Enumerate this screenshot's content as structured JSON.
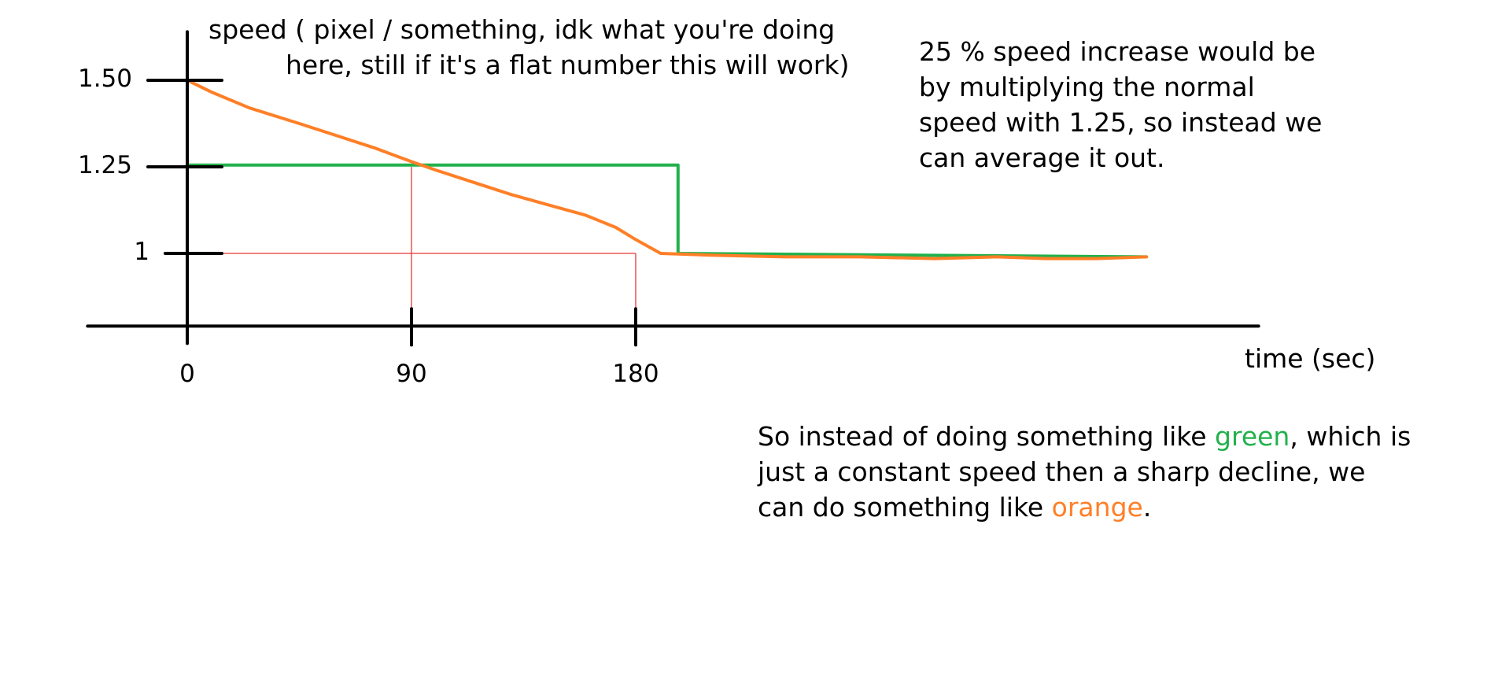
{
  "chart_data": {
    "type": "line",
    "ylabel_lines": [
      "speed ( pixel / something, idk what you're doing",
      "here, still if it's a flat number this will work)"
    ],
    "xlabel": "time (sec)",
    "x_ticks": [
      {
        "value": 0,
        "label": "0"
      },
      {
        "value": 90,
        "label": "90"
      },
      {
        "value": 180,
        "label": "180"
      }
    ],
    "y_ticks": [
      {
        "value": 1.0,
        "label": "1"
      },
      {
        "value": 1.25,
        "label": "1.25"
      },
      {
        "value": 1.5,
        "label": "1.50"
      }
    ],
    "xlim": [
      -40,
      430
    ],
    "ylim": [
      0.79,
      1.64
    ],
    "guides": [
      {
        "x": [
          0,
          180
        ],
        "y": [
          1.0,
          1.0
        ]
      },
      {
        "x": [
          90,
          90
        ],
        "y": [
          1.25,
          0.79
        ]
      },
      {
        "x": [
          180,
          180
        ],
        "y": [
          1.0,
          0.79
        ]
      }
    ],
    "series": [
      {
        "color": "#22b14c",
        "x": [
          0,
          197,
          197,
          385
        ],
        "y": [
          1.255,
          1.255,
          1.0,
          0.99
        ]
      },
      {
        "color": "#ff7f27",
        "x": [
          0,
          10,
          25,
          45,
          60,
          75,
          90,
          100,
          115,
          130,
          145,
          160,
          172,
          180,
          190,
          210,
          240,
          270,
          300,
          325,
          345,
          365,
          385
        ],
        "y": [
          1.5,
          1.465,
          1.42,
          1.375,
          1.34,
          1.305,
          1.265,
          1.24,
          1.205,
          1.17,
          1.14,
          1.11,
          1.075,
          1.04,
          1.0,
          0.995,
          0.99,
          0.99,
          0.985,
          0.99,
          0.985,
          0.985,
          0.99
        ]
      }
    ]
  },
  "notes": {
    "top_right": "25 % speed increase would be\nby multiplying the normal\nspeed with 1.25, so instead we\ncan average it out.",
    "bottom": {
      "part1": "So instead of doing something like ",
      "green_word": "green",
      "part2": ", which is\njust a constant speed then a sharp decline, we\ncan do something like ",
      "orange_word": "orange",
      "part3": "."
    }
  }
}
